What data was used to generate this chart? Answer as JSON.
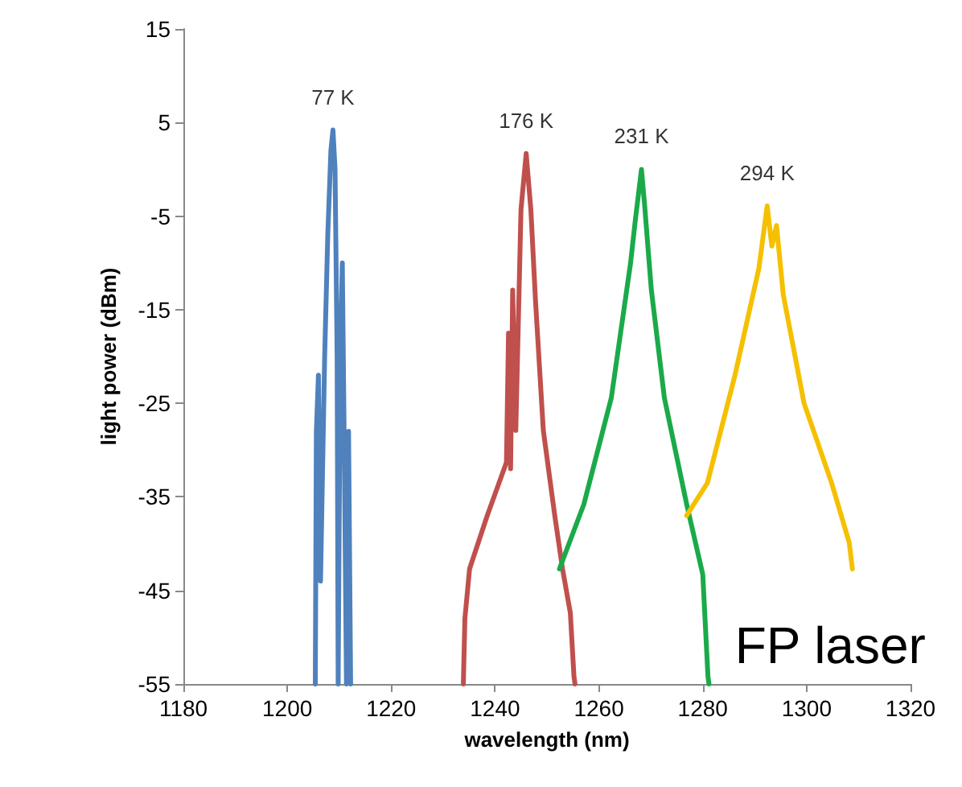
{
  "chart_data": {
    "type": "line",
    "xlabel": "wavelength (nm)",
    "ylabel": "light power (dBm)",
    "xlim": [
      1180,
      1320
    ],
    "xticks": [
      1180,
      1200,
      1220,
      1240,
      1260,
      1280,
      1300,
      1320
    ],
    "ylim": [
      -55,
      15
    ],
    "yticks": [
      -55,
      -45,
      -35,
      -25,
      -15,
      -5,
      5,
      15
    ],
    "grid": false,
    "marker": "none",
    "line_style": "solid",
    "series": [
      {
        "color": "#4f81bd",
        "x": [
          1205.4,
          1205.6,
          1206.0,
          1206.4,
          1207.2,
          1207.8,
          1208.4,
          1208.8,
          1209.2,
          1209.6,
          1209.8,
          1210.2,
          1210.6,
          1211.0,
          1211.4,
          1211.8,
          1212.2
        ],
        "values": [
          -55,
          -28,
          -22,
          -44,
          -20,
          -7,
          2,
          4.2,
          0,
          -20,
          -55,
          -20,
          -10,
          -31,
          -55,
          -28,
          -55
        ]
      },
      {
        "color": "#c0504d",
        "x": [
          1233.9,
          1234.2,
          1235.1,
          1238.5,
          1242.2,
          1242.6,
          1243.0,
          1243.4,
          1244.0,
          1245.0,
          1246.0,
          1246.9,
          1247.8,
          1249.3,
          1251.5,
          1253.0,
          1254.5,
          1255.2,
          1255.4
        ],
        "values": [
          -55,
          -48,
          -42.7,
          -37,
          -31.3,
          -17.5,
          -32,
          -12.9,
          -27.9,
          -4.3,
          1.7,
          -4.3,
          -14.1,
          -27.9,
          -37,
          -42.7,
          -47.4,
          -54.2,
          -55
        ]
      },
      {
        "color": "#1aaa4a",
        "x": [
          1252.4,
          1257.1,
          1262.4,
          1266.1,
          1267.0,
          1268.2,
          1268.8,
          1270.1,
          1272.6,
          1276.9,
          1280.0,
          1281.0,
          1281.2
        ],
        "values": [
          -42.7,
          -35.8,
          -24.4,
          -10,
          -5.5,
          0,
          -3.8,
          -12.9,
          -24.4,
          -35.8,
          -43.3,
          -54.2,
          -55
        ]
      },
      {
        "color": "#f5c000",
        "x": [
          1276.9,
          1280.9,
          1286.2,
          1290.8,
          1292.4,
          1293.3,
          1294.2,
          1295.5,
          1299.5,
          1304.8,
          1308.2,
          1308.8
        ],
        "values": [
          -37,
          -33.5,
          -22,
          -10.6,
          -3.9,
          -8.2,
          -6,
          -13.4,
          -25,
          -33.5,
          -39.9,
          -42.7
        ]
      }
    ],
    "annotations": [
      "77 K",
      "176 K",
      "231 K",
      "294 K",
      "FP laser"
    ]
  }
}
